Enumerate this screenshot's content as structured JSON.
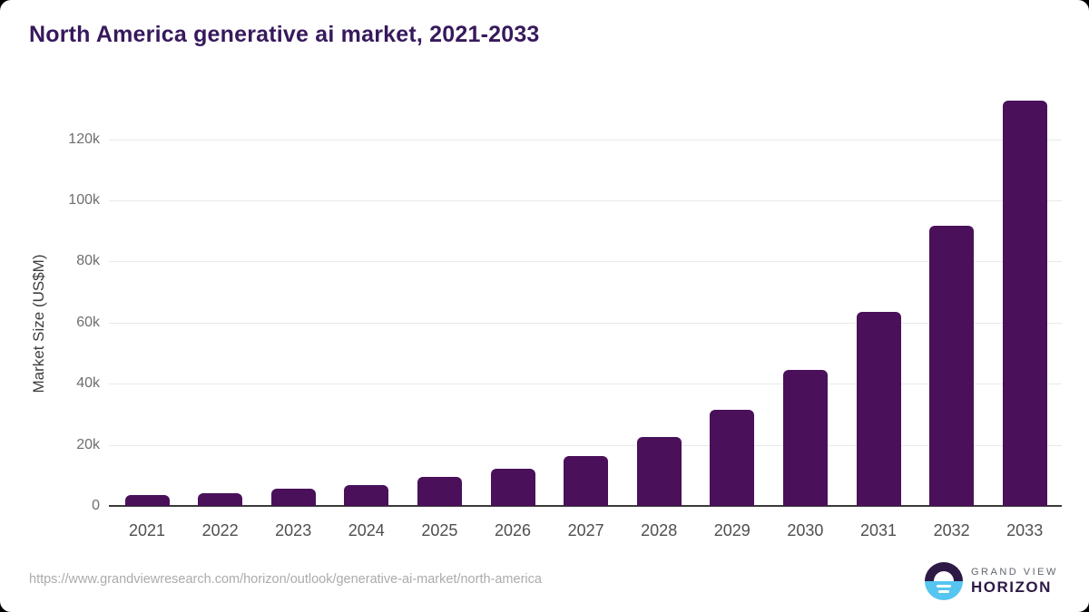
{
  "page": {
    "title": "North America generative ai market, 2021-2033",
    "source_url": "https://www.grandviewresearch.com/horizon/outlook/generative-ai-market/north-america"
  },
  "logo": {
    "top_text": "GRAND VIEW",
    "bottom_text": "HORIZON",
    "icon": "sunrise-horizon-circle-icon"
  },
  "colors": {
    "bar": "#4a105a",
    "title_text": "#37195c",
    "axis_line": "#3a3a3a",
    "gridline": "#e9e9e9",
    "y_tick_text": "#6e6e6e",
    "x_tick_text": "#4f4f4f",
    "url_text": "#ababab",
    "logo_dark": "#2e1a47",
    "logo_blue": "#56c5f0"
  },
  "chart_data": {
    "type": "bar",
    "title": "North America generative ai market, 2021-2033",
    "xlabel": "",
    "ylabel": "Market Size (US$M)",
    "categories": [
      "2021",
      "2022",
      "2023",
      "2024",
      "2025",
      "2026",
      "2027",
      "2028",
      "2029",
      "2030",
      "2031",
      "2032",
      "2033"
    ],
    "values": [
      3500,
      4300,
      5700,
      6900,
      9500,
      12100,
      16400,
      22600,
      31400,
      44500,
      63600,
      91600,
      132600
    ],
    "series_name": "Market Size (US$M)",
    "yticks": [
      {
        "value": 0,
        "label": "0"
      },
      {
        "value": 20000,
        "label": "20k"
      },
      {
        "value": 40000,
        "label": "40k"
      },
      {
        "value": 60000,
        "label": "60k"
      },
      {
        "value": 80000,
        "label": "80k"
      },
      {
        "value": 100000,
        "label": "100k"
      },
      {
        "value": 120000,
        "label": "120k"
      }
    ],
    "ylim": [
      0,
      134000
    ],
    "grid": "horizontal",
    "legend_position": "none",
    "bar_color": "#4a105a"
  }
}
